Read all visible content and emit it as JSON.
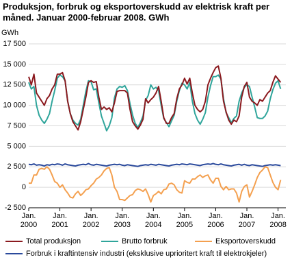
{
  "chart_data": {
    "type": "line",
    "title": "Produksjon, forbruk og eksportoverskudd av elektrisk kraft per måned. Januar 2000-februar 2008. GWh",
    "y_label": "GWh",
    "ylim": [
      -2500,
      17500
    ],
    "yticks": [
      {
        "value": -2500,
        "label": "-2 500"
      },
      0,
      {
        "value": 2500,
        "label": "2 500"
      },
      {
        "value": 5000,
        "label": "5 000"
      },
      {
        "value": 7500,
        "label": "7 500"
      },
      {
        "value": 10000,
        "label": "10 000"
      },
      {
        "value": 12500,
        "label": "12 500"
      },
      {
        "value": 15000,
        "label": "15 000"
      },
      {
        "value": 17500,
        "label": "17 500"
      }
    ],
    "xlim": [
      2000,
      2008.25
    ],
    "xticks": [
      {
        "value": 2000,
        "label": "Jan.\n2000"
      },
      {
        "value": 2001,
        "label": "Jan.\n2001"
      },
      {
        "value": 2002,
        "label": "Jan.\n2002"
      },
      {
        "value": 2003,
        "label": "Jan.\n2003"
      },
      {
        "value": 2004,
        "label": "Jan.\n2004"
      },
      {
        "value": 2005,
        "label": "Jan.\n2005"
      },
      {
        "value": 2006,
        "label": "Jan.\n2006"
      },
      {
        "value": 2007,
        "label": "Jan.\n2007"
      },
      {
        "value": 2008,
        "label": "Jan.\n2008"
      }
    ],
    "grid": true,
    "x": [
      2000,
      2000.083,
      2000.167,
      2000.25,
      2000.333,
      2000.417,
      2000.5,
      2000.583,
      2000.667,
      2000.75,
      2000.833,
      2000.917,
      2001,
      2001.083,
      2001.167,
      2001.25,
      2001.333,
      2001.417,
      2001.5,
      2001.583,
      2001.667,
      2001.75,
      2001.833,
      2001.917,
      2002,
      2002.083,
      2002.167,
      2002.25,
      2002.333,
      2002.417,
      2002.5,
      2002.583,
      2002.667,
      2002.75,
      2002.833,
      2002.917,
      2003,
      2003.083,
      2003.167,
      2003.25,
      2003.333,
      2003.417,
      2003.5,
      2003.583,
      2003.667,
      2003.75,
      2003.833,
      2003.917,
      2004,
      2004.083,
      2004.167,
      2004.25,
      2004.333,
      2004.417,
      2004.5,
      2004.583,
      2004.667,
      2004.75,
      2004.833,
      2004.917,
      2005,
      2005.083,
      2005.167,
      2005.25,
      2005.333,
      2005.417,
      2005.5,
      2005.583,
      2005.667,
      2005.75,
      2005.833,
      2005.917,
      2006,
      2006.083,
      2006.167,
      2006.25,
      2006.333,
      2006.417,
      2006.5,
      2006.583,
      2006.667,
      2006.75,
      2006.833,
      2006.917,
      2007,
      2007.083,
      2007.167,
      2007.25,
      2007.333,
      2007.417,
      2007.5,
      2007.583,
      2007.667,
      2007.75,
      2007.833,
      2007.917,
      2008,
      2008.083
    ],
    "series": [
      {
        "name": "Total produksjon",
        "color": "#8b1a1f",
        "values": [
          13500,
          12500,
          13800,
          11500,
          11000,
          10500,
          10000,
          10800,
          11200,
          12000,
          12500,
          13800,
          13800,
          14000,
          13000,
          10500,
          9000,
          8000,
          7500,
          7000,
          8000,
          9500,
          11000,
          12800,
          13000,
          12800,
          12900,
          11000,
          9500,
          9800,
          9500,
          9700,
          9200,
          10300,
          11700,
          11800,
          11800,
          11800,
          11500,
          9500,
          8000,
          7500,
          7100,
          7600,
          8300,
          10800,
          10300,
          10700,
          11000,
          11500,
          12300,
          10500,
          8500,
          7800,
          7800,
          8500,
          9000,
          10800,
          12000,
          12500,
          13300,
          12600,
          13300,
          11500,
          10000,
          9500,
          9200,
          9500,
          10500,
          12500,
          13300,
          14000,
          14600,
          14800,
          13300,
          10500,
          9200,
          8200,
          7700,
          8200,
          8000,
          8700,
          11000,
          12300,
          12800,
          11000,
          10500,
          10300,
          10000,
          10700,
          10500,
          11000,
          11500,
          11800,
          12800,
          13600,
          13200,
          12800
        ]
      },
      {
        "name": "Brutto forbruk",
        "color": "#2fa59b",
        "values": [
          12800,
          12000,
          12300,
          10000,
          8800,
          8200,
          7800,
          8300,
          9000,
          10500,
          11800,
          13300,
          13700,
          13500,
          13000,
          10500,
          9000,
          8200,
          7800,
          7600,
          8300,
          10000,
          11700,
          13000,
          12900,
          11900,
          12000,
          10300,
          8700,
          7800,
          6900,
          7500,
          8500,
          10900,
          12000,
          12300,
          12200,
          12400,
          11800,
          10200,
          8800,
          7800,
          7300,
          7900,
          8700,
          10600,
          11200,
          12500,
          12000,
          12200,
          11800,
          10000,
          8400,
          7900,
          7400,
          8100,
          8800,
          10500,
          11800,
          12700,
          12500,
          12000,
          12800,
          10500,
          9000,
          8200,
          7700,
          8300,
          9100,
          11000,
          12400,
          13500,
          13500,
          13700,
          13200,
          10800,
          9100,
          8500,
          7900,
          8400,
          8700,
          10500,
          11500,
          12200,
          12500,
          12300,
          11000,
          9800,
          8500,
          8400,
          8400,
          8700,
          9300,
          10800,
          11900,
          12700,
          13000,
          12000
        ]
      },
      {
        "name": "Eksportoverskudd",
        "color": "#f4a04f",
        "values": [
          500,
          500,
          1500,
          1500,
          2200,
          2300,
          2200,
          2500,
          2200,
          1500,
          700,
          500,
          0,
          300,
          -300,
          -700,
          -1200,
          -1300,
          -800,
          -500,
          -1000,
          -700,
          -300,
          -200,
          200,
          500,
          1000,
          1200,
          1500,
          2000,
          2300,
          2400,
          1500,
          0,
          -500,
          -1500,
          -1500,
          -1600,
          -1300,
          -1000,
          -900,
          -400,
          -200,
          -300,
          -500,
          -200,
          -900,
          -1800,
          -1000,
          -800,
          -500,
          -800,
          -300,
          -200,
          400,
          500,
          300,
          -300,
          -600,
          -700,
          800,
          600,
          500,
          1000,
          1000,
          1300,
          1500,
          1200,
          1400,
          1500,
          900,
          500,
          1100,
          1100,
          100,
          -300,
          100,
          -300,
          -200,
          -200,
          -700,
          -1800,
          -500,
          100,
          300,
          -1200,
          -500,
          300,
          1200,
          1800,
          2100,
          2500,
          2400,
          1500,
          600,
          0,
          -300,
          900
        ]
      },
      {
        "name": "Forbruk i kraftintensiv industri (eksklusive uprioritert kraft til elektrokjeler)",
        "color": "#2b4a9c",
        "values": [
          2800,
          2750,
          2850,
          2700,
          2750,
          2700,
          2600,
          2750,
          2700,
          2800,
          2750,
          2850,
          2800,
          2700,
          2850,
          2750,
          2700,
          2650,
          2600,
          2700,
          2750,
          2800,
          2750,
          2900,
          2750,
          2700,
          2800,
          2750,
          2700,
          2650,
          2600,
          2700,
          2750,
          2800,
          2750,
          2800,
          2700,
          2650,
          2750,
          2700,
          2650,
          2600,
          2550,
          2650,
          2700,
          2750,
          2700,
          2800,
          2750,
          2700,
          2800,
          2750,
          2700,
          2650,
          2600,
          2700,
          2750,
          2800,
          2750,
          2850,
          2800,
          2750,
          2850,
          2800,
          2750,
          2700,
          2650,
          2750,
          2800,
          2850,
          2800,
          2900,
          2800,
          2750,
          2850,
          2750,
          2700,
          2650,
          2600,
          2700,
          2750,
          2800,
          2700,
          2800,
          2700,
          2650,
          2750,
          2700,
          2650,
          2600,
          2550,
          2650,
          2700,
          2750,
          2700,
          2750,
          2700,
          2650
        ]
      }
    ]
  }
}
